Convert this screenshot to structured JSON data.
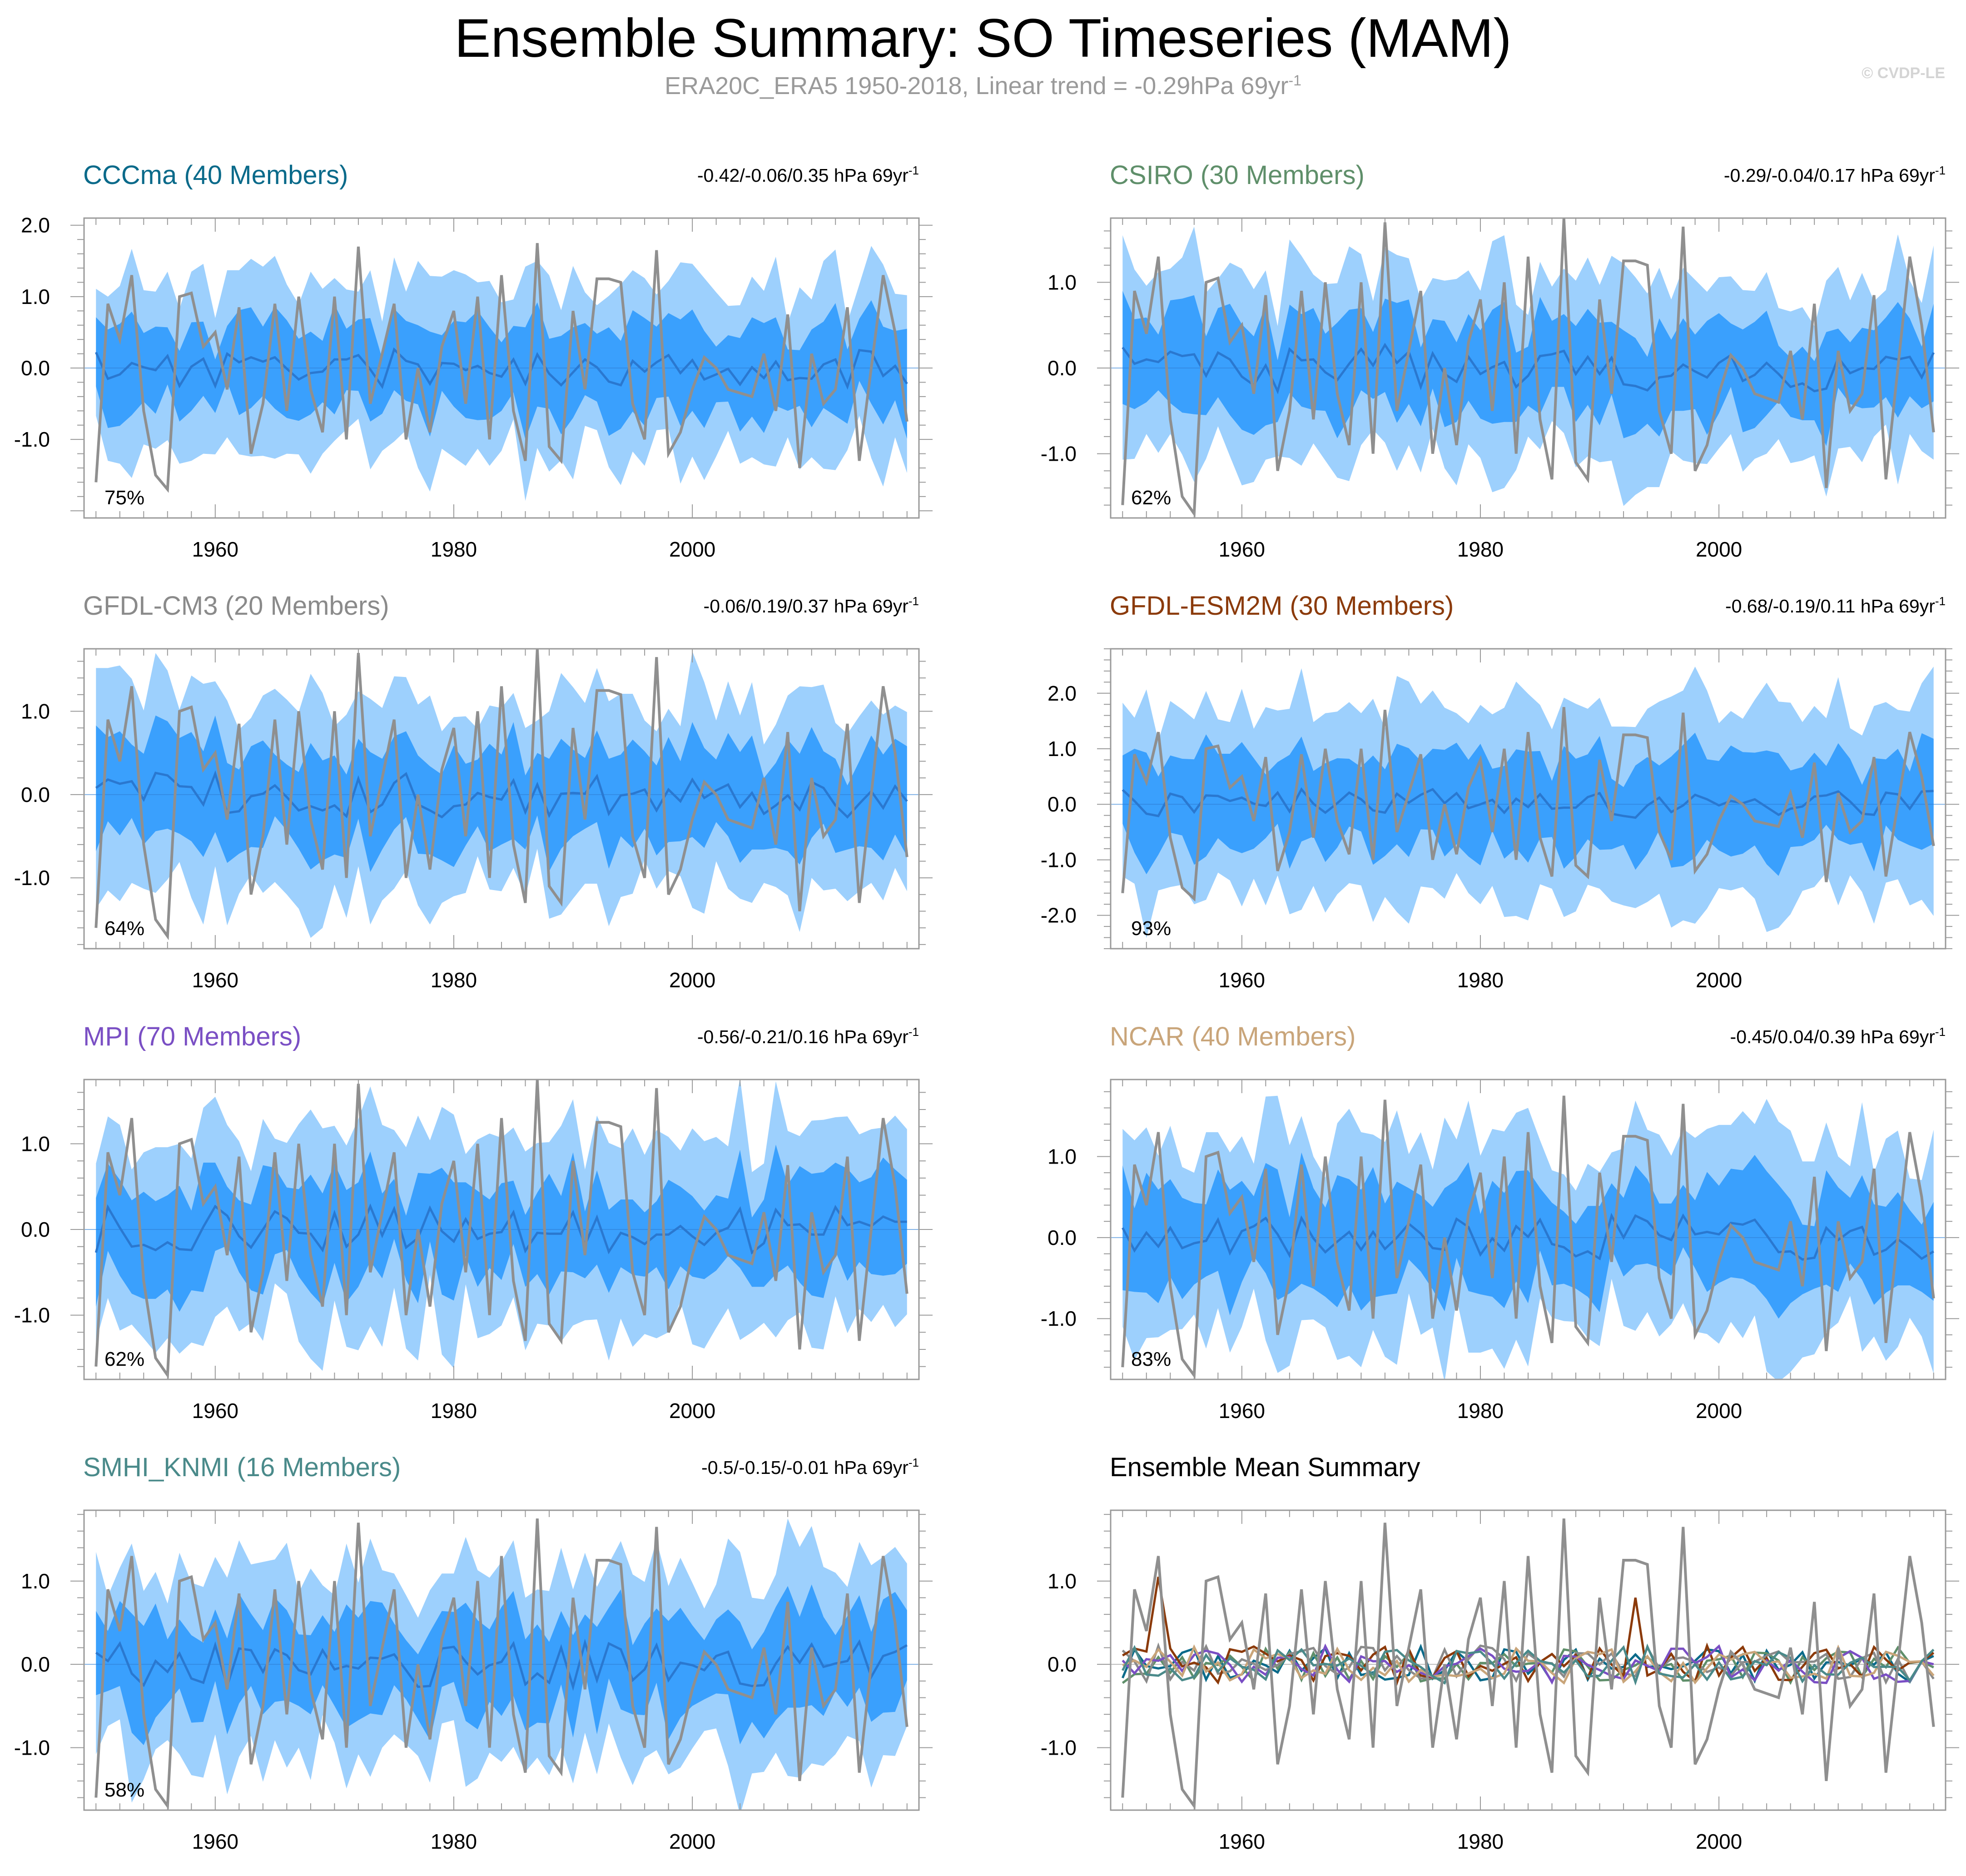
{
  "figure": {
    "title": "Ensemble Summary: SO Timeseries (MAM)",
    "subtitle_main": "ERA20C_ERA5 1950-2018, Linear trend = -0.29hPa 69yr",
    "subtitle_sup": "-1",
    "watermark": "© CVDP-LE"
  },
  "colors": {
    "outer_band": "#9dd0fd",
    "inner_band": "#3aa0fd",
    "ensemble_mean_line": "#2a78d0",
    "observations_line": "#8f8f8f",
    "axis": "#9a9a9a"
  },
  "chart_data": [
    {
      "type": "line",
      "title": "CCCma (40 Members)",
      "title_color": "#0a6a8a",
      "trend_text": "-0.42/-0.06/0.35 hPa 69yr",
      "trend_sup": "-1",
      "percent_label": "75%",
      "xlim": [
        1949,
        2019
      ],
      "ylim": [
        -2.1,
        2.1
      ],
      "xticks": [
        1960,
        1980,
        2000
      ],
      "xtick_labels": [
        "1960",
        "1980",
        "2000"
      ],
      "yticks": [
        -1.0,
        0.0,
        1.0,
        2.0
      ],
      "ytick_labels": [
        "-1.0",
        "0.0",
        "1.0",
        "2.0"
      ],
      "band_scale": 1.0,
      "seed": 11
    },
    {
      "type": "line",
      "title": "CSIRO (30 Members)",
      "title_color": "#5f8f6a",
      "trend_text": "-0.29/-0.04/0.17 hPa 69yr",
      "trend_sup": "-1",
      "percent_label": "62%",
      "xlim": [
        1949,
        2019
      ],
      "ylim": [
        -1.75,
        1.75
      ],
      "xticks": [
        1960,
        1980,
        2000
      ],
      "xtick_labels": [
        "1960",
        "1980",
        "2000"
      ],
      "yticks": [
        -1.0,
        0.0,
        1.0
      ],
      "ytick_labels": [
        "-1.0",
        "0.0",
        "1.0"
      ],
      "band_scale": 0.9,
      "seed": 23
    },
    {
      "type": "line",
      "title": "GFDL-CM3 (20 Members)",
      "title_color": "#8a8a8a",
      "trend_text": "-0.06/0.19/0.37 hPa 69yr",
      "trend_sup": "-1",
      "percent_label": "64%",
      "xlim": [
        1949,
        2019
      ],
      "ylim": [
        -1.85,
        1.75
      ],
      "xticks": [
        1960,
        1980,
        2000
      ],
      "xtick_labels": [
        "1960",
        "1980",
        "2000"
      ],
      "yticks": [
        -1.0,
        0.0,
        1.0
      ],
      "ytick_labels": [
        "-1.0",
        "0.0",
        "1.0"
      ],
      "band_scale": 0.95,
      "seed": 37
    },
    {
      "type": "line",
      "title": "GFDL-ESM2M (30 Members)",
      "title_color": "#8b3a0a",
      "trend_text": "-0.68/-0.19/0.11 hPa 69yr",
      "trend_sup": "-1",
      "percent_label": "93%",
      "xlim": [
        1949,
        2019
      ],
      "ylim": [
        -2.6,
        2.8
      ],
      "xticks": [
        1960,
        1980,
        2000
      ],
      "xtick_labels": [
        "1960",
        "1980",
        "2000"
      ],
      "yticks": [
        -2.0,
        -1.0,
        0.0,
        1.0,
        2.0
      ],
      "ytick_labels": [
        "-2.0",
        "-1.0",
        "0.0",
        "1.0",
        "2.0"
      ],
      "band_scale": 1.45,
      "seed": 41
    },
    {
      "type": "line",
      "title": "MPI (70 Members)",
      "title_color": "#7a4fc4",
      "trend_text": "-0.56/-0.21/0.16 hPa 69yr",
      "trend_sup": "-1",
      "percent_label": "62%",
      "xlim": [
        1949,
        2019
      ],
      "ylim": [
        -1.75,
        1.75
      ],
      "xticks": [
        1960,
        1980,
        2000
      ],
      "xtick_labels": [
        "1960",
        "1980",
        "2000"
      ],
      "yticks": [
        -1.0,
        0.0,
        1.0
      ],
      "ytick_labels": [
        "-1.0",
        "0.0",
        "1.0"
      ],
      "band_scale": 0.95,
      "seed": 53
    },
    {
      "type": "line",
      "title": "NCAR (40 Members)",
      "title_color": "#c9a57a",
      "trend_text": "-0.45/0.04/0.39 hPa 69yr",
      "trend_sup": "-1",
      "percent_label": "83%",
      "xlim": [
        1949,
        2019
      ],
      "ylim": [
        -1.75,
        1.95
      ],
      "xticks": [
        1960,
        1980,
        2000
      ],
      "xtick_labels": [
        "1960",
        "1980",
        "2000"
      ],
      "yticks": [
        -1.0,
        0.0,
        1.0
      ],
      "ytick_labels": [
        "-1.0",
        "0.0",
        "1.0"
      ],
      "band_scale": 1.05,
      "seed": 67
    },
    {
      "type": "line",
      "title": "SMHI_KNMI (16 Members)",
      "title_color": "#4a8a8a",
      "trend_text": "-0.5/-0.15/-0.01 hPa 69yr",
      "trend_sup": "-1",
      "percent_label": "58%",
      "xlim": [
        1949,
        2019
      ],
      "ylim": [
        -1.75,
        1.85
      ],
      "xticks": [
        1960,
        1980,
        2000
      ],
      "xtick_labels": [
        "1960",
        "1980",
        "2000"
      ],
      "yticks": [
        -1.0,
        0.0,
        1.0
      ],
      "ytick_labels": [
        "-1.0",
        "0.0",
        "1.0"
      ],
      "band_scale": 0.95,
      "seed": 79
    },
    {
      "type": "line",
      "title": "Ensemble Mean Summary",
      "title_color": "#000000",
      "trend_text": "",
      "trend_sup": "",
      "percent_label": "",
      "xlim": [
        1949,
        2019
      ],
      "ylim": [
        -1.75,
        1.85
      ],
      "xticks": [
        1960,
        1980,
        2000
      ],
      "xtick_labels": [
        "1960",
        "1980",
        "2000"
      ],
      "yticks": [
        -1.0,
        0.0,
        1.0
      ],
      "ytick_labels": [
        "-1.0",
        "0.0",
        "1.0"
      ],
      "summary": true,
      "series_colors": [
        "#0a6a8a",
        "#5f8f6a",
        "#8a8a8a",
        "#8b3a0a",
        "#7a4fc4",
        "#c9a57a",
        "#4a8a8a"
      ]
    }
  ],
  "observations": {
    "name": "ERA20C_ERA5",
    "years": [
      1950,
      1951,
      1952,
      1953,
      1954,
      1955,
      1956,
      1957,
      1958,
      1959,
      1960,
      1961,
      1962,
      1963,
      1964,
      1965,
      1966,
      1967,
      1968,
      1969,
      1970,
      1971,
      1972,
      1973,
      1974,
      1975,
      1976,
      1977,
      1978,
      1979,
      1980,
      1981,
      1982,
      1983,
      1984,
      1985,
      1986,
      1987,
      1988,
      1989,
      1990,
      1991,
      1992,
      1993,
      1994,
      1995,
      1996,
      1997,
      1998,
      1999,
      2000,
      2001,
      2002,
      2003,
      2004,
      2005,
      2006,
      2007,
      2008,
      2009,
      2010,
      2011,
      2012,
      2013,
      2014,
      2015,
      2016,
      2017,
      2018
    ],
    "values": [
      -1.6,
      0.9,
      0.4,
      1.3,
      -0.6,
      -1.5,
      -1.7,
      1.0,
      1.05,
      0.3,
      0.5,
      -0.3,
      0.85,
      -1.2,
      -0.5,
      0.9,
      -0.6,
      1.0,
      -0.3,
      -0.9,
      1.0,
      -1.0,
      1.7,
      -0.5,
      0.2,
      0.9,
      -1.0,
      0.0,
      -0.9,
      0.3,
      0.8,
      -0.5,
      1.0,
      -1.0,
      1.3,
      -0.6,
      -1.3,
      1.75,
      -1.1,
      -1.3,
      0.8,
      -0.3,
      1.25,
      1.25,
      1.2,
      -0.5,
      -1.0,
      1.65,
      -1.2,
      -0.9,
      -0.3,
      0.15,
      0.0,
      -0.3,
      -0.35,
      -0.4,
      0.2,
      -0.6,
      0.75,
      -1.4,
      0.2,
      -0.5,
      -0.3,
      0.85,
      -1.3,
      0.0,
      1.3,
      0.5,
      -0.75
    ]
  }
}
